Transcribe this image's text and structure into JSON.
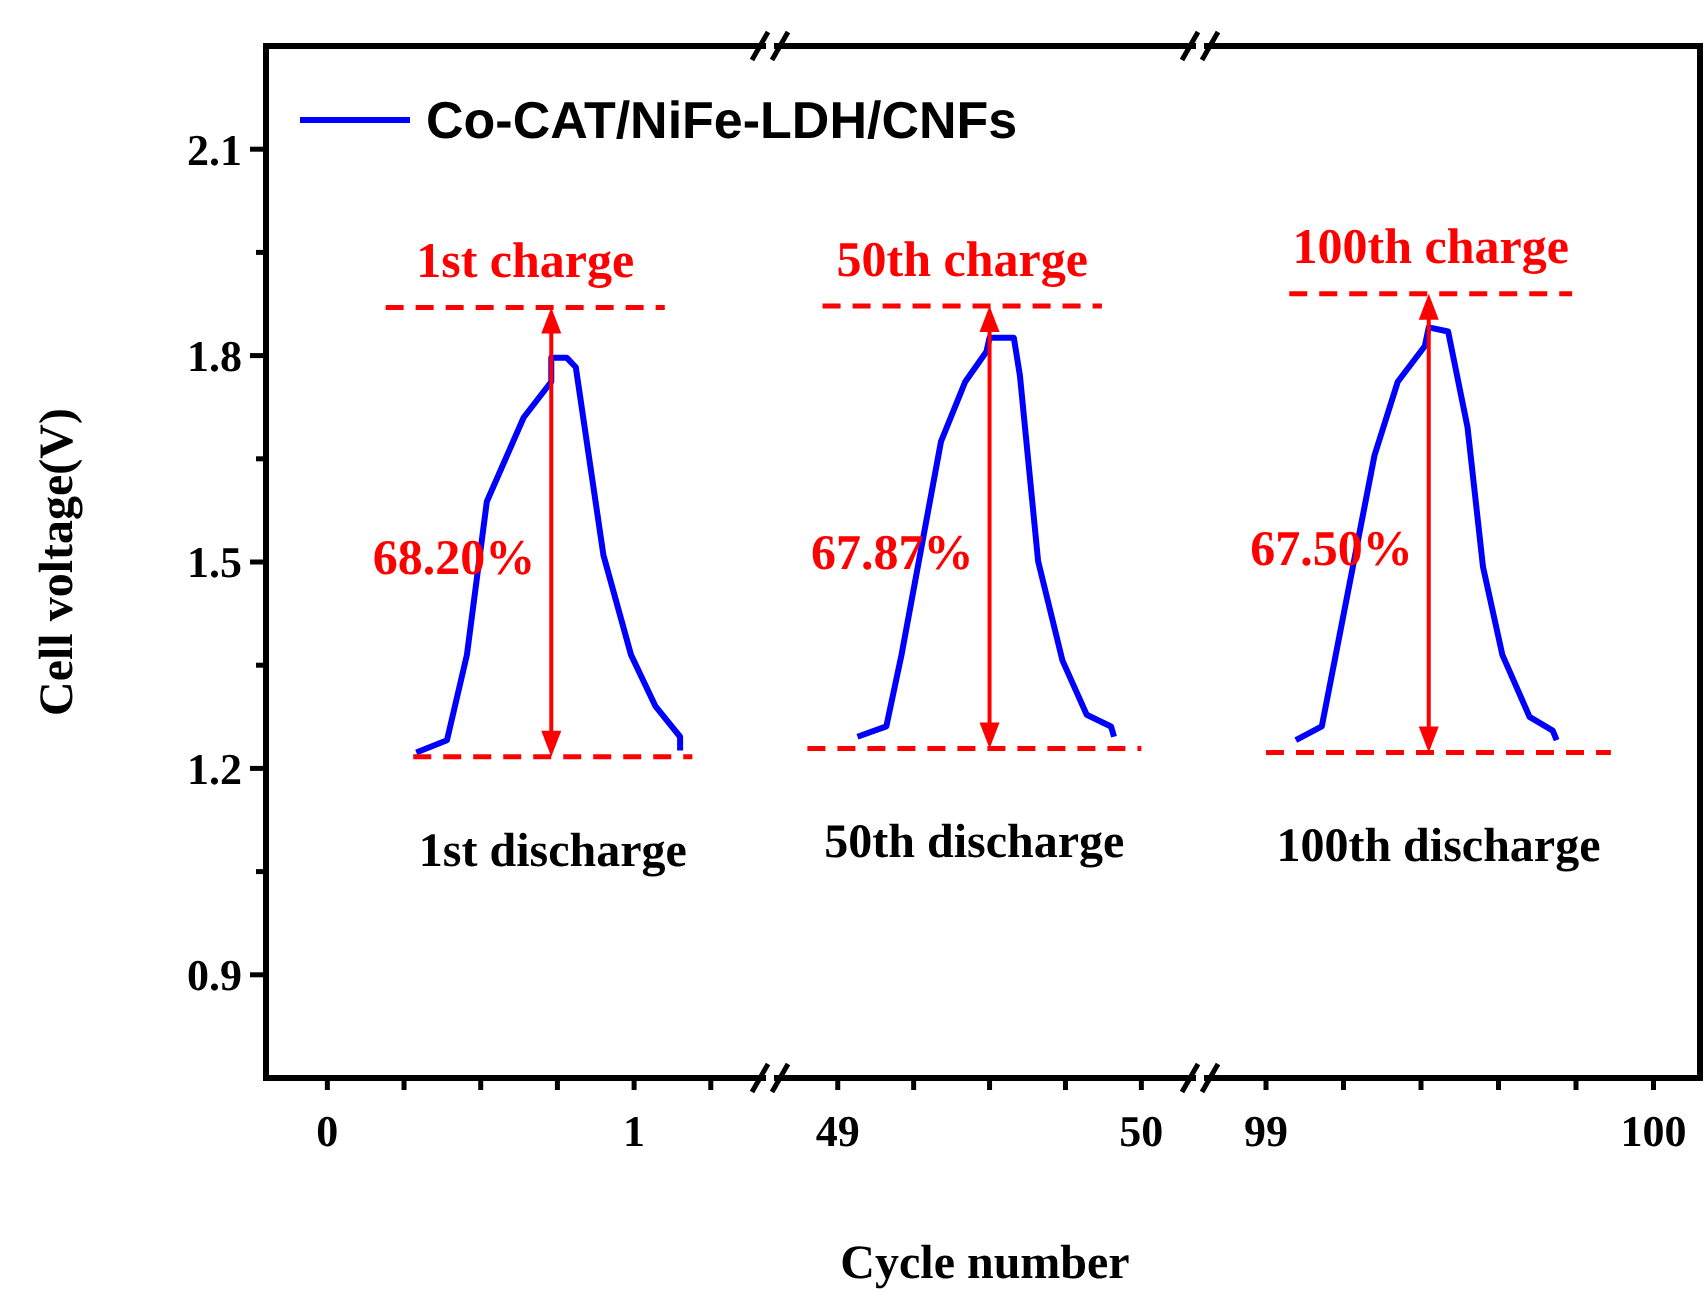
{
  "chart_data": [
    {
      "type": "line",
      "ylabel": "Cell voltage(V)",
      "xlim": [
        -0.2,
        1.43
      ],
      "ylim": [
        0.75,
        2.25
      ],
      "xticks": [
        0,
        {
          "value": 0.25,
          "label": null
        },
        {
          "value": 0.5,
          "label": null
        },
        {
          "value": 0.75,
          "label": null
        },
        1,
        {
          "value": 1.25,
          "label": null
        }
      ],
      "yticks": [
        0.9,
        {
          "value": 1.05,
          "label": null
        },
        1.2,
        {
          "value": 1.35,
          "label": null
        },
        1.5,
        {
          "value": 1.65,
          "label": null
        },
        1.8,
        {
          "value": 1.95,
          "label": null
        },
        2.1
      ],
      "legend": "top",
      "series": [
        {
          "name": "Co-CAT/NiFe-LDH/CNFs",
          "color": "#0000ff",
          "x": [
            0.29,
            0.39,
            0.455,
            0.52,
            0.64,
            0.73,
            0.73,
            0.78,
            0.81,
            0.9,
            0.99,
            1.07,
            1.15,
            1.15
          ],
          "values": [
            1.223,
            1.241,
            1.365,
            1.588,
            1.71,
            1.762,
            1.797,
            1.797,
            1.783,
            1.51,
            1.365,
            1.29,
            1.246,
            1.226
          ]
        },
        {
          "type": "line",
          "color": "#ff0000",
          "line_style": "dashed",
          "x": [
            0.19,
            1.1
          ],
          "values": [
            1.87,
            1.87
          ]
        },
        {
          "type": "line",
          "color": "#ff0000",
          "line_style": "dashed",
          "x": [
            0.28,
            1.19
          ],
          "values": [
            1.217,
            1.217
          ]
        }
      ],
      "annotations": [
        "1st charge",
        "68.20%",
        "1st discharge"
      ]
    },
    {
      "type": "line",
      "xlabel": "Cycle number",
      "tick_labels": "x",
      "xlim": [
        48.79,
        50.18
      ],
      "ylim": [
        0.75,
        2.25
      ],
      "xticks": [
        49,
        {
          "value": 49.25,
          "label": null
        },
        {
          "value": 49.5,
          "label": null
        },
        {
          "value": 49.75,
          "label": null
        },
        50
      ],
      "series": [
        {
          "color": "#0000ff",
          "x": [
            49.065,
            49.16,
            49.21,
            49.34,
            49.42,
            49.49,
            49.5,
            49.58,
            49.6,
            49.66,
            49.74,
            49.82,
            49.9,
            49.91
          ],
          "values": [
            1.246,
            1.261,
            1.365,
            1.675,
            1.762,
            1.806,
            1.826,
            1.826,
            1.771,
            1.501,
            1.357,
            1.278,
            1.261,
            1.246
          ]
        },
        {
          "type": "line",
          "color": "#ff0000",
          "line_style": "dashed",
          "x": [
            48.95,
            49.87
          ],
          "values": [
            1.872,
            1.872
          ]
        },
        {
          "type": "line",
          "color": "#ff0000",
          "line_style": "dashed",
          "x": [
            48.9,
            50.0
          ],
          "values": [
            1.229,
            1.229
          ]
        }
      ],
      "annotations": [
        "50th charge",
        "67.87%",
        "50th discharge"
      ]
    },
    {
      "type": "line",
      "tick_labels": "x",
      "xlim": [
        98.84,
        100.12
      ],
      "ylim": [
        0.75,
        2.25
      ],
      "xticks": [
        99,
        {
          "value": 99.2,
          "label": null
        },
        {
          "value": 99.4,
          "label": null
        },
        {
          "value": 99.6,
          "label": null
        },
        {
          "value": 99.8,
          "label": null
        },
        100
      ],
      "series": [
        {
          "color": "#0000ff",
          "x": [
            99.077,
            99.144,
            99.18,
            99.28,
            99.34,
            99.41,
            99.42,
            99.47,
            99.52,
            99.56,
            99.61,
            99.68,
            99.74,
            99.75
          ],
          "values": [
            1.241,
            1.261,
            1.365,
            1.655,
            1.762,
            1.814,
            1.841,
            1.835,
            1.696,
            1.493,
            1.365,
            1.275,
            1.255,
            1.241
          ]
        },
        {
          "type": "line",
          "color": "#ff0000",
          "line_style": "dashed",
          "x": [
            99.06,
            99.79
          ],
          "values": [
            1.89,
            1.89
          ]
        },
        {
          "type": "line",
          "color": "#ff0000",
          "line_style": "dashed",
          "x": [
            99.0,
            99.89
          ],
          "values": [
            1.223,
            1.223
          ]
        }
      ],
      "annotations": [
        "100th charge",
        "67.50%",
        "100th discharge"
      ]
    }
  ]
}
